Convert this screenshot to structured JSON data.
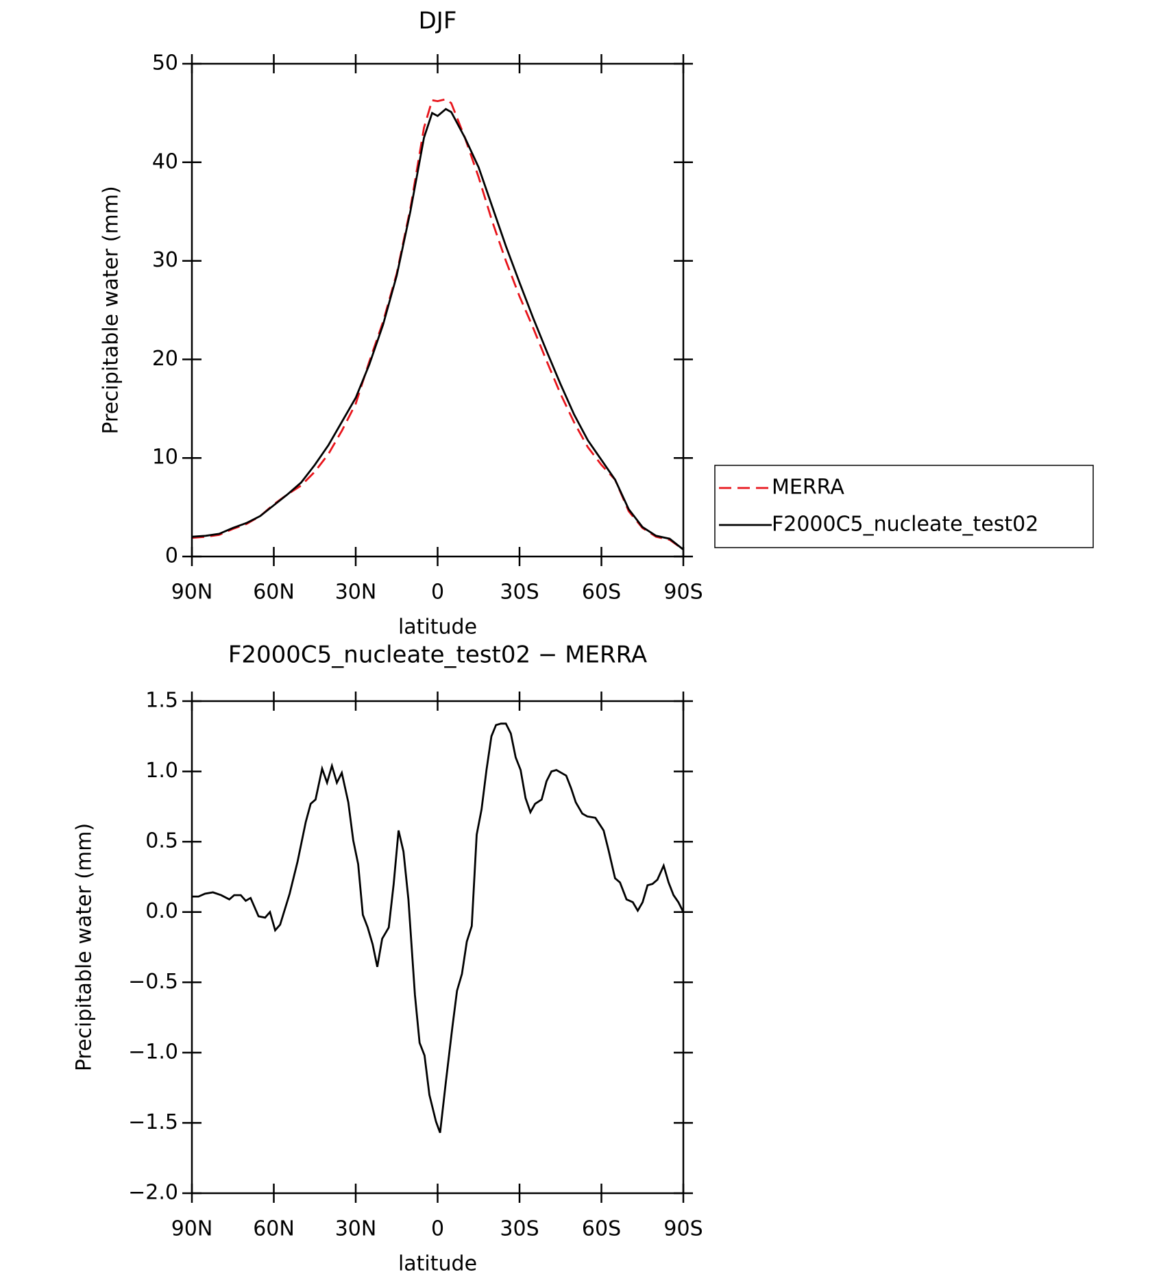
{
  "chart_data": [
    {
      "type": "line",
      "title": "DJF",
      "xlabel": "latitude",
      "ylabel": "Precipitable water (mm)",
      "xlim": [
        90,
        -90
      ],
      "xticks": [
        {
          "value": 90,
          "label": "90N"
        },
        {
          "value": 60,
          "label": "60N"
        },
        {
          "value": 30,
          "label": "30N"
        },
        0,
        {
          "value": -30,
          "label": "30S"
        },
        {
          "value": -60,
          "label": "60S"
        },
        {
          "value": -90,
          "label": "90S"
        }
      ],
      "ylim": [
        0,
        50
      ],
      "yticks": [
        0,
        10,
        20,
        30,
        40,
        50
      ],
      "legend": "right",
      "x": [
        90,
        85,
        80,
        75,
        70,
        65,
        60,
        55,
        50,
        45,
        40,
        35,
        30,
        25,
        20,
        15,
        10,
        5,
        2,
        0,
        -3,
        -5,
        -10,
        -15,
        -20,
        -25,
        -30,
        -35,
        -40,
        -45,
        -50,
        -55,
        -60,
        -65,
        -70,
        -75,
        -80,
        -85,
        -90
      ],
      "series": [
        {
          "name": "MERRA",
          "color": "#e8141b",
          "line_style": "dashed",
          "values": [
            1.9,
            2.0,
            2.2,
            2.8,
            3.3,
            4.1,
            5.3,
            6.3,
            7.2,
            8.6,
            10.4,
            12.8,
            15.5,
            19.8,
            23.8,
            28.7,
            35.3,
            43.5,
            46.3,
            46.2,
            46.4,
            46.0,
            42.5,
            38.5,
            34.0,
            30.0,
            26.4,
            23.2,
            19.8,
            16.5,
            13.6,
            11.1,
            9.3,
            7.8,
            4.6,
            2.9,
            2.0,
            1.7,
            0.7
          ]
        },
        {
          "name": "F2000C5_nucleate_test02",
          "color": "#000000",
          "line_style": "solid",
          "values": [
            2.0,
            2.1,
            2.3,
            2.9,
            3.4,
            4.1,
            5.2,
            6.3,
            7.5,
            9.3,
            11.3,
            13.7,
            16.1,
            19.5,
            23.5,
            28.5,
            35.0,
            42.5,
            45.0,
            44.7,
            45.4,
            45.1,
            42.5,
            39.5,
            35.5,
            31.5,
            27.8,
            24.2,
            20.8,
            17.5,
            14.4,
            11.8,
            9.8,
            7.8,
            4.8,
            3.0,
            2.1,
            1.8,
            0.7
          ]
        }
      ]
    },
    {
      "type": "line",
      "title": "F2000C5_nucleate_test02 − MERRA",
      "xlabel": "latitude",
      "ylabel": "Precipitable water (mm)",
      "xlim": [
        90,
        -90
      ],
      "xticks": [
        {
          "value": 90,
          "label": "90N"
        },
        {
          "value": 60,
          "label": "60N"
        },
        {
          "value": 30,
          "label": "30N"
        },
        0,
        {
          "value": -30,
          "label": "30S"
        },
        {
          "value": -60,
          "label": "60S"
        },
        {
          "value": -90,
          "label": "90S"
        }
      ],
      "ylim": [
        -2.0,
        1.5
      ],
      "yticks": [
        {
          "value": -2.0,
          "label": "−2.0"
        },
        {
          "value": -1.5,
          "label": "−1.5"
        },
        {
          "value": -1.0,
          "label": "−1.0"
        },
        {
          "value": -0.5,
          "label": "−0.5"
        },
        {
          "value": 0.0,
          "label": "0.0"
        },
        0.5,
        {
          "value": 1.0,
          "label": "1.0"
        },
        1.5
      ],
      "color": "#000000",
      "x": [
        90,
        87.6,
        85.2,
        82.3,
        79.3,
        76.3,
        74.5,
        72.1,
        70.3,
        68.5,
        65.6,
        63.2,
        61.4,
        59.5,
        57.7,
        54.2,
        51.3,
        48.3,
        46.5,
        44.7,
        42.3,
        40.5,
        38.7,
        36.9,
        35.1,
        32.7,
        30.9,
        29.1,
        27.4,
        25.6,
        23.8,
        22.1,
        20.3,
        17.9,
        16.1,
        14.3,
        12.5,
        10.7,
        8.3,
        6.6,
        4.8,
        3.0,
        0.6,
        -0.9,
        -3.0,
        -5.4,
        -7.1,
        -8.9,
        -10.7,
        -12.5,
        -14.3,
        -16.1,
        -17.9,
        -19.7,
        -21.4,
        -23.2,
        -25.0,
        -26.8,
        -28.6,
        -30.4,
        -32.2,
        -34.0,
        -35.7,
        -38.1,
        -39.9,
        -41.7,
        -43.5,
        -45.3,
        -47.1,
        -48.9,
        -50.6,
        -53.0,
        -54.8,
        -57.8,
        -60.8,
        -62.6,
        -65.0,
        -66.8,
        -69.2,
        -71.5,
        -73.3,
        -75.1,
        -76.9,
        -78.7,
        -80.5,
        -82.8,
        -84.6,
        -86.4,
        -88.2,
        -90
      ],
      "values": [
        0.11,
        0.11,
        0.13,
        0.14,
        0.12,
        0.09,
        0.12,
        0.12,
        0.08,
        0.1,
        -0.03,
        -0.04,
        0.0,
        -0.13,
        -0.09,
        0.13,
        0.36,
        0.64,
        0.77,
        0.8,
        1.02,
        0.92,
        1.04,
        0.92,
        0.99,
        0.78,
        0.51,
        0.34,
        -0.02,
        -0.11,
        -0.23,
        -0.39,
        -0.19,
        -0.11,
        0.2,
        0.58,
        0.43,
        0.09,
        -0.59,
        -0.93,
        -1.02,
        -1.3,
        -1.49,
        -1.57,
        -1.21,
        -0.82,
        -0.56,
        -0.44,
        -0.21,
        -0.1,
        0.55,
        0.73,
        1.01,
        1.25,
        1.33,
        1.34,
        1.34,
        1.27,
        1.1,
        1.01,
        0.81,
        0.71,
        0.77,
        0.8,
        0.93,
        1.0,
        1.01,
        0.99,
        0.97,
        0.88,
        0.78,
        0.7,
        0.68,
        0.67,
        0.58,
        0.44,
        0.24,
        0.21,
        0.09,
        0.07,
        0.01,
        0.07,
        0.19,
        0.2,
        0.23,
        0.33,
        0.21,
        0.12,
        0.07,
        0.0
      ]
    }
  ]
}
